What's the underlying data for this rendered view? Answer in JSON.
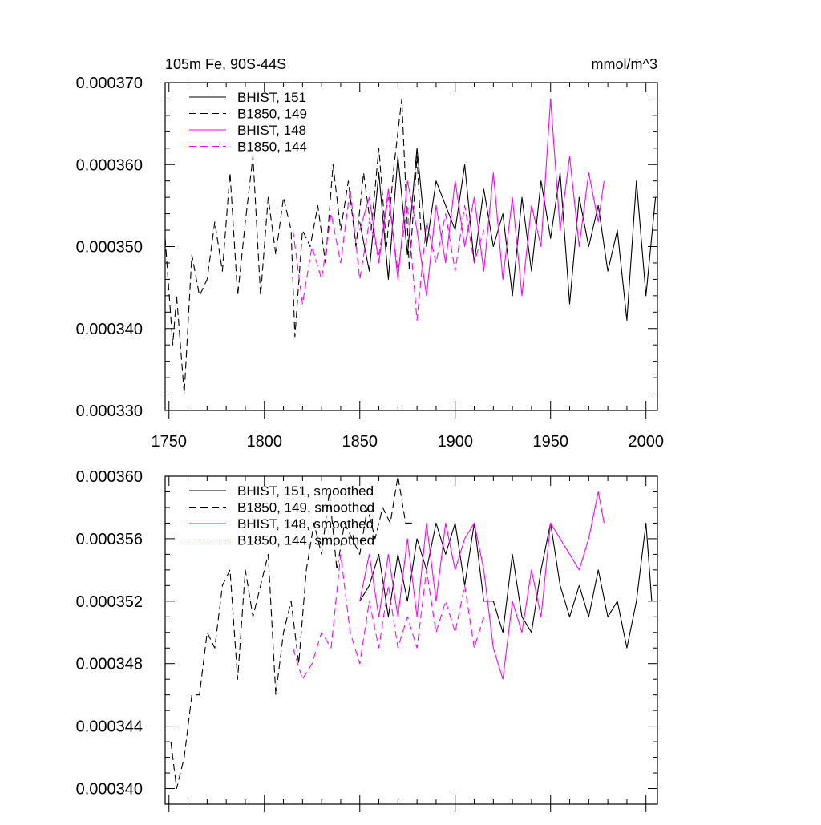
{
  "chart_data": [
    {
      "type": "line",
      "title": "105m Fe, 90S-44S",
      "units": "mmol/m^3",
      "xlim": [
        1748,
        2006
      ],
      "ylim": [
        0.00033,
        0.00037
      ],
      "xticks": [
        "1750",
        "1800",
        "1850",
        "1900",
        "1950",
        "2000"
      ],
      "yticks": [
        "0.000330",
        "0.000340",
        "0.000350",
        "0.000360",
        "0.000370"
      ],
      "legend_position": "top-left",
      "series": [
        {
          "name": "BHIST, 151",
          "color": "#000000",
          "dash": "solid",
          "x": [
            1850,
            1855,
            1860,
            1865,
            1870,
            1875,
            1880,
            1885,
            1890,
            1895,
            1900,
            1905,
            1910,
            1915,
            1920,
            1925,
            1930,
            1935,
            1940,
            1945,
            1950,
            1955,
            1960,
            1965,
            1970,
            1975,
            1980,
            1985,
            1990,
            1995,
            2000,
            2005
          ],
          "y": [
            0.000353,
            0.000347,
            0.000359,
            0.000346,
            0.000361,
            0.000349,
            0.000362,
            0.00035,
            0.000358,
            0.000355,
            0.000352,
            0.00036,
            0.000348,
            0.000357,
            0.00035,
            0.000354,
            0.000344,
            0.000356,
            0.000347,
            0.000358,
            0.000351,
            0.000359,
            0.000343,
            0.000356,
            0.00035,
            0.000355,
            0.000347,
            0.000352,
            0.000341,
            0.000358,
            0.000344,
            0.000356
          ]
        },
        {
          "name": "B1850, 149",
          "color": "#000000",
          "dash": "dashed",
          "x": [
            1748,
            1752,
            1754,
            1758,
            1762,
            1766,
            1770,
            1774,
            1778,
            1782,
            1786,
            1790,
            1794,
            1798,
            1802,
            1806,
            1810,
            1814,
            1816,
            1820,
            1824,
            1828,
            1832,
            1836,
            1840,
            1844,
            1848,
            1852,
            1856,
            1860,
            1864,
            1868,
            1872,
            1876,
            1880,
            1882
          ],
          "y": [
            0.000351,
            0.000338,
            0.000344,
            0.000332,
            0.000349,
            0.000344,
            0.000346,
            0.000353,
            0.000347,
            0.000359,
            0.000344,
            0.000353,
            0.000361,
            0.000344,
            0.000356,
            0.000349,
            0.000356,
            0.000352,
            0.000339,
            0.000352,
            0.00035,
            0.000355,
            0.000348,
            0.00036,
            0.000352,
            0.000358,
            0.00035,
            0.000359,
            0.000352,
            0.000362,
            0.00035,
            0.00036,
            0.000368,
            0.000347,
            0.000361,
            0.000352
          ]
        },
        {
          "name": "BHIST, 148",
          "color": "#ff00ff",
          "dash": "solid",
          "x": [
            1850,
            1855,
            1860,
            1865,
            1870,
            1875,
            1880,
            1885,
            1890,
            1895,
            1900,
            1905,
            1910,
            1915,
            1920,
            1925,
            1930,
            1935,
            1940,
            1945,
            1950,
            1955,
            1960,
            1965,
            1970,
            1975,
            1978
          ],
          "y": [
            0.000352,
            0.000356,
            0.000348,
            0.000357,
            0.000346,
            0.000358,
            0.000352,
            0.000344,
            0.000355,
            0.000348,
            0.000358,
            0.00035,
            0.000356,
            0.000347,
            0.000359,
            0.000346,
            0.000356,
            0.000344,
            0.000355,
            0.00035,
            0.000368,
            0.000352,
            0.000361,
            0.00035,
            0.000359,
            0.000353,
            0.000358
          ]
        },
        {
          "name": "B1850, 144",
          "color": "#ff00ff",
          "dash": "dashed",
          "x": [
            1815,
            1820,
            1825,
            1830,
            1835,
            1840,
            1845,
            1850,
            1855,
            1860,
            1865,
            1870,
            1875,
            1880,
            1885,
            1890,
            1895,
            1900,
            1905,
            1910,
            1915
          ],
          "y": [
            0.000352,
            0.000343,
            0.00035,
            0.000346,
            0.000354,
            0.000348,
            0.000357,
            0.000346,
            0.000353,
            0.000349,
            0.000356,
            0.000347,
            0.000355,
            0.000341,
            0.000353,
            0.000348,
            0.000354,
            0.000347,
            0.000355,
            0.000348,
            0.000352
          ]
        }
      ]
    },
    {
      "type": "line",
      "title": "",
      "xlim": [
        1748,
        2006
      ],
      "ylim": [
        0.000339,
        0.00036
      ],
      "yticks": [
        "0.000340",
        "0.000344",
        "0.000348",
        "0.000352",
        "0.000356",
        "0.000360"
      ],
      "legend_position": "top-left",
      "series": [
        {
          "name": "BHIST, 151, smoothed",
          "color": "#000000",
          "dash": "solid",
          "x": [
            1850,
            1855,
            1860,
            1865,
            1870,
            1875,
            1880,
            1885,
            1890,
            1895,
            1900,
            1905,
            1910,
            1915,
            1920,
            1925,
            1930,
            1935,
            1940,
            1945,
            1950,
            1955,
            1960,
            1965,
            1970,
            1975,
            1980,
            1985,
            1990,
            1995,
            2000,
            2003
          ],
          "y": [
            0.000352,
            0.000353,
            0.000355,
            0.000351,
            0.000355,
            0.000352,
            0.000356,
            0.000354,
            0.000357,
            0.000355,
            0.000357,
            0.000353,
            0.000357,
            0.000352,
            0.000352,
            0.00035,
            0.000355,
            0.000351,
            0.00035,
            0.000354,
            0.000357,
            0.000353,
            0.000351,
            0.000353,
            0.000351,
            0.000354,
            0.000351,
            0.000352,
            0.000349,
            0.000352,
            0.000357,
            0.000352
          ]
        },
        {
          "name": "B1850, 149, smoothed",
          "color": "#000000",
          "dash": "dashed",
          "x": [
            1751,
            1754,
            1758,
            1762,
            1766,
            1770,
            1774,
            1778,
            1782,
            1786,
            1790,
            1794,
            1798,
            1802,
            1806,
            1810,
            1814,
            1818,
            1822,
            1826,
            1830,
            1834,
            1838,
            1842,
            1846,
            1850,
            1854,
            1858,
            1862,
            1866,
            1870,
            1874,
            1878
          ],
          "y": [
            0.000343,
            0.00034,
            0.000342,
            0.000346,
            0.000346,
            0.00035,
            0.000349,
            0.000353,
            0.000354,
            0.000347,
            0.000354,
            0.000351,
            0.000353,
            0.000355,
            0.000346,
            0.00035,
            0.000352,
            0.000348,
            0.000354,
            0.000357,
            0.000355,
            0.000359,
            0.000354,
            0.000357,
            0.000356,
            0.000355,
            0.000358,
            0.000356,
            0.000358,
            0.000357,
            0.00036,
            0.000357,
            0.000357
          ]
        },
        {
          "name": "BHIST, 148, smoothed",
          "color": "#ff00ff",
          "dash": "solid",
          "x": [
            1850,
            1855,
            1860,
            1865,
            1870,
            1875,
            1880,
            1885,
            1890,
            1895,
            1900,
            1905,
            1910,
            1915,
            1920,
            1925,
            1930,
            1935,
            1940,
            1945,
            1950,
            1955,
            1960,
            1965,
            1970,
            1975,
            1978
          ],
          "y": [
            0.000352,
            0.000355,
            0.000351,
            0.000355,
            0.000351,
            0.000356,
            0.000351,
            0.000357,
            0.000352,
            0.000357,
            0.000354,
            0.000356,
            0.000357,
            0.000354,
            0.000349,
            0.000347,
            0.000352,
            0.00035,
            0.000354,
            0.000351,
            0.000357,
            0.000356,
            0.000355,
            0.000354,
            0.000356,
            0.000359,
            0.000357
          ]
        },
        {
          "name": "B1850, 144, smoothed",
          "color": "#ff00ff",
          "dash": "dashed",
          "x": [
            1815,
            1820,
            1825,
            1830,
            1835,
            1840,
            1845,
            1850,
            1855,
            1860,
            1865,
            1870,
            1875,
            1880,
            1885,
            1890,
            1895,
            1900,
            1905,
            1910,
            1915
          ],
          "y": [
            0.000349,
            0.000347,
            0.000348,
            0.00035,
            0.000349,
            0.000355,
            0.00035,
            0.000348,
            0.000352,
            0.000349,
            0.000353,
            0.000349,
            0.000351,
            0.000349,
            0.000354,
            0.00035,
            0.000352,
            0.00035,
            0.000353,
            0.000349,
            0.000351
          ]
        }
      ]
    }
  ]
}
